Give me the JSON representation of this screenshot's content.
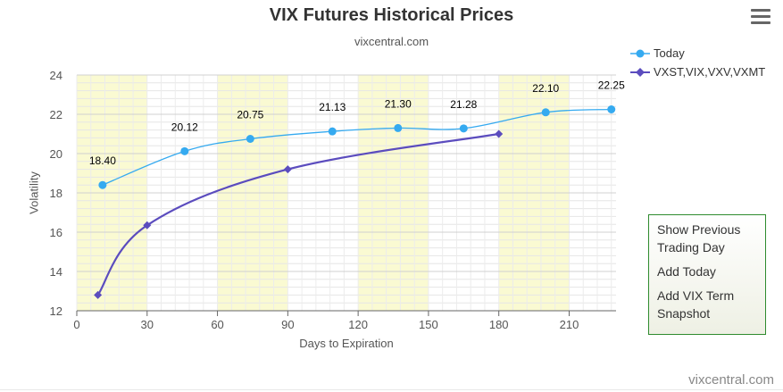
{
  "header": {
    "title": "VIX Futures Historical Prices",
    "subtitle": "vixcentral.com",
    "menu_icon": "hamburger-icon"
  },
  "context_menu": {
    "items": [
      {
        "label_line1": "Show Previous",
        "label_line2": "Trading Day"
      },
      {
        "label_line1": "Add Today"
      },
      {
        "label_line1": "Add VIX Term",
        "label_line2": "Snapshot"
      }
    ]
  },
  "credit": "vixcentral.com",
  "chart_data": {
    "type": "line",
    "xlabel": "Days to Expiration",
    "ylabel": "Volatility",
    "xlim": [
      0,
      230
    ],
    "ylim": [
      12,
      24
    ],
    "x_ticks": [
      0,
      30,
      60,
      90,
      120,
      150,
      180,
      210
    ],
    "y_ticks": [
      12,
      14,
      16,
      18,
      20,
      22,
      24
    ],
    "x_tick_labels": [
      "0",
      "30",
      "60",
      "90",
      "120",
      "150",
      "180",
      "210"
    ],
    "y_tick_labels": [
      "12",
      "14",
      "16",
      "18",
      "20",
      "22",
      "24"
    ],
    "grid": true,
    "legend_position": "top-right",
    "shaded_bands": [
      [
        0,
        30
      ],
      [
        60,
        90
      ],
      [
        120,
        150
      ],
      [
        180,
        210
      ]
    ],
    "band_color": "#fafad2",
    "series": [
      {
        "name": "Today",
        "color": "#35aaf0",
        "marker": "circle",
        "x": [
          11,
          46,
          74,
          109,
          137,
          165,
          200,
          228
        ],
        "y": [
          18.4,
          20.12,
          20.75,
          21.13,
          21.3,
          21.28,
          22.1,
          22.25
        ],
        "labels": [
          "18.40",
          "20.12",
          "20.75",
          "21.13",
          "21.30",
          "21.28",
          "22.10",
          "22.25"
        ]
      },
      {
        "name": "VXST,VIX,VXV,VXMT",
        "color": "#5b4cbe",
        "marker": "diamond",
        "x": [
          9,
          30,
          90,
          180
        ],
        "y": [
          12.8,
          16.35,
          19.2,
          21.0
        ]
      }
    ]
  }
}
